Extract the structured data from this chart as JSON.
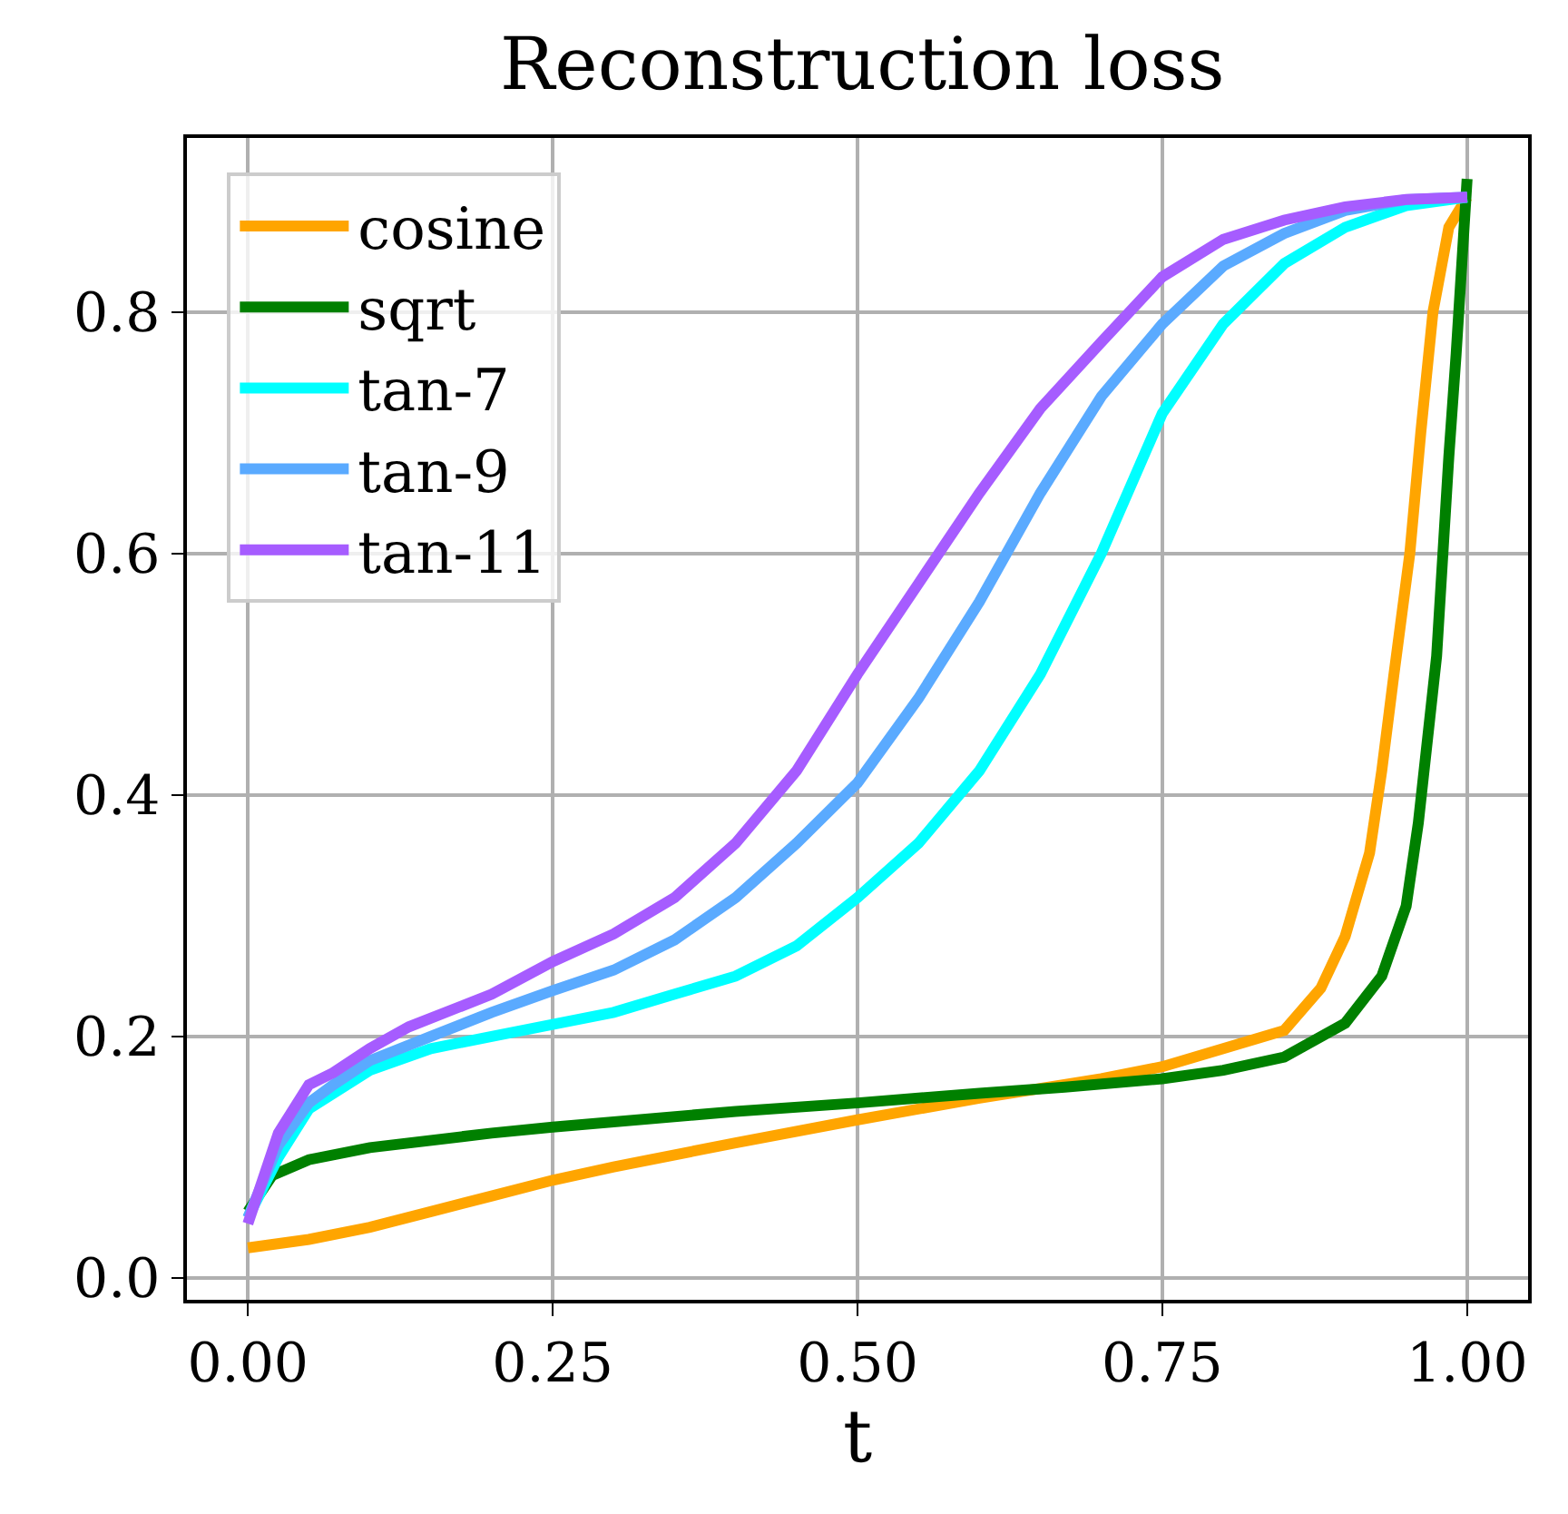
{
  "chart_data": {
    "type": "line",
    "title": "Reconstruction loss",
    "xlabel": "t",
    "xlim": [
      -0.05,
      1.05
    ],
    "xticks": [
      {
        "value": 0,
        "label": "0.00"
      },
      {
        "value": 0.25,
        "label": "0.25"
      },
      {
        "value": 0.5,
        "label": "0.50"
      },
      {
        "value": 0.75,
        "label": "0.75"
      },
      {
        "value": 1,
        "label": "1.00"
      }
    ],
    "ylim": [
      -0.018,
      0.944
    ],
    "yticks": [
      {
        "value": 0,
        "label": "0.0"
      },
      {
        "value": 0.2,
        "label": "0.2"
      },
      {
        "value": 0.4,
        "label": "0.4"
      },
      {
        "value": 0.6,
        "label": "0.6"
      },
      {
        "value": 0.8,
        "label": "0.8"
      }
    ],
    "grid": true,
    "legend": "top left",
    "line_style": "solid",
    "marker": "none",
    "series": [
      {
        "name": "cosine",
        "color": "#ffa500",
        "x": [
          0,
          0.05,
          0.1,
          0.15,
          0.2,
          0.25,
          0.3,
          0.4,
          0.5,
          0.6,
          0.7,
          0.75,
          0.8,
          0.85,
          0.88,
          0.9,
          0.92,
          0.93,
          0.94,
          0.953,
          0.962,
          0.972,
          0.985,
          1
        ],
        "values": [
          0.025,
          0.032,
          0.042,
          0.055,
          0.068,
          0.081,
          0.092,
          0.112,
          0.131,
          0.149,
          0.165,
          0.175,
          0.19,
          0.205,
          0.24,
          0.283,
          0.352,
          0.42,
          0.5,
          0.6,
          0.7,
          0.8,
          0.87,
          0.895
        ]
      },
      {
        "name": "sqrt",
        "color": "#008000",
        "x": [
          0,
          0.02,
          0.05,
          0.1,
          0.2,
          0.25,
          0.4,
          0.5,
          0.6,
          0.67,
          0.75,
          0.8,
          0.85,
          0.9,
          0.93,
          0.95,
          0.96,
          0.975,
          0.985,
          0.991,
          1
        ],
        "values": [
          0.055,
          0.085,
          0.098,
          0.108,
          0.12,
          0.125,
          0.138,
          0.145,
          0.153,
          0.158,
          0.165,
          0.172,
          0.183,
          0.211,
          0.25,
          0.308,
          0.377,
          0.515,
          0.68,
          0.765,
          0.91
        ]
      },
      {
        "name": "tan-7",
        "color": "#00ffff",
        "x": [
          0,
          0.025,
          0.05,
          0.1,
          0.15,
          0.2,
          0.25,
          0.3,
          0.35,
          0.4,
          0.45,
          0.5,
          0.55,
          0.6,
          0.65,
          0.7,
          0.75,
          0.8,
          0.85,
          0.9,
          0.95,
          1
        ],
        "values": [
          0.05,
          0.1,
          0.14,
          0.172,
          0.19,
          0.2,
          0.21,
          0.22,
          0.235,
          0.25,
          0.275,
          0.315,
          0.36,
          0.42,
          0.5,
          0.6,
          0.716,
          0.79,
          0.84,
          0.87,
          0.888,
          0.895
        ]
      },
      {
        "name": "tan-9",
        "color": "#5aaaff",
        "x": [
          0,
          0.025,
          0.05,
          0.07,
          0.1,
          0.15,
          0.2,
          0.25,
          0.3,
          0.35,
          0.4,
          0.45,
          0.5,
          0.55,
          0.6,
          0.65,
          0.7,
          0.75,
          0.8,
          0.85,
          0.9,
          0.95,
          1
        ],
        "values": [
          0.05,
          0.11,
          0.145,
          0.16,
          0.18,
          0.2,
          0.22,
          0.238,
          0.255,
          0.28,
          0.315,
          0.36,
          0.41,
          0.48,
          0.56,
          0.65,
          0.73,
          0.79,
          0.838,
          0.865,
          0.884,
          0.893,
          0.895
        ]
      },
      {
        "name": "tan-11",
        "color": "#a65cff",
        "x": [
          0,
          0.025,
          0.05,
          0.07,
          0.1,
          0.132,
          0.2,
          0.25,
          0.3,
          0.35,
          0.4,
          0.45,
          0.5,
          0.55,
          0.6,
          0.65,
          0.7,
          0.75,
          0.8,
          0.85,
          0.9,
          0.95,
          1
        ],
        "values": [
          0.045,
          0.12,
          0.16,
          0.17,
          0.19,
          0.208,
          0.235,
          0.262,
          0.285,
          0.315,
          0.36,
          0.42,
          0.5,
          0.575,
          0.65,
          0.72,
          0.775,
          0.829,
          0.86,
          0.876,
          0.887,
          0.893,
          0.895
        ]
      }
    ]
  }
}
